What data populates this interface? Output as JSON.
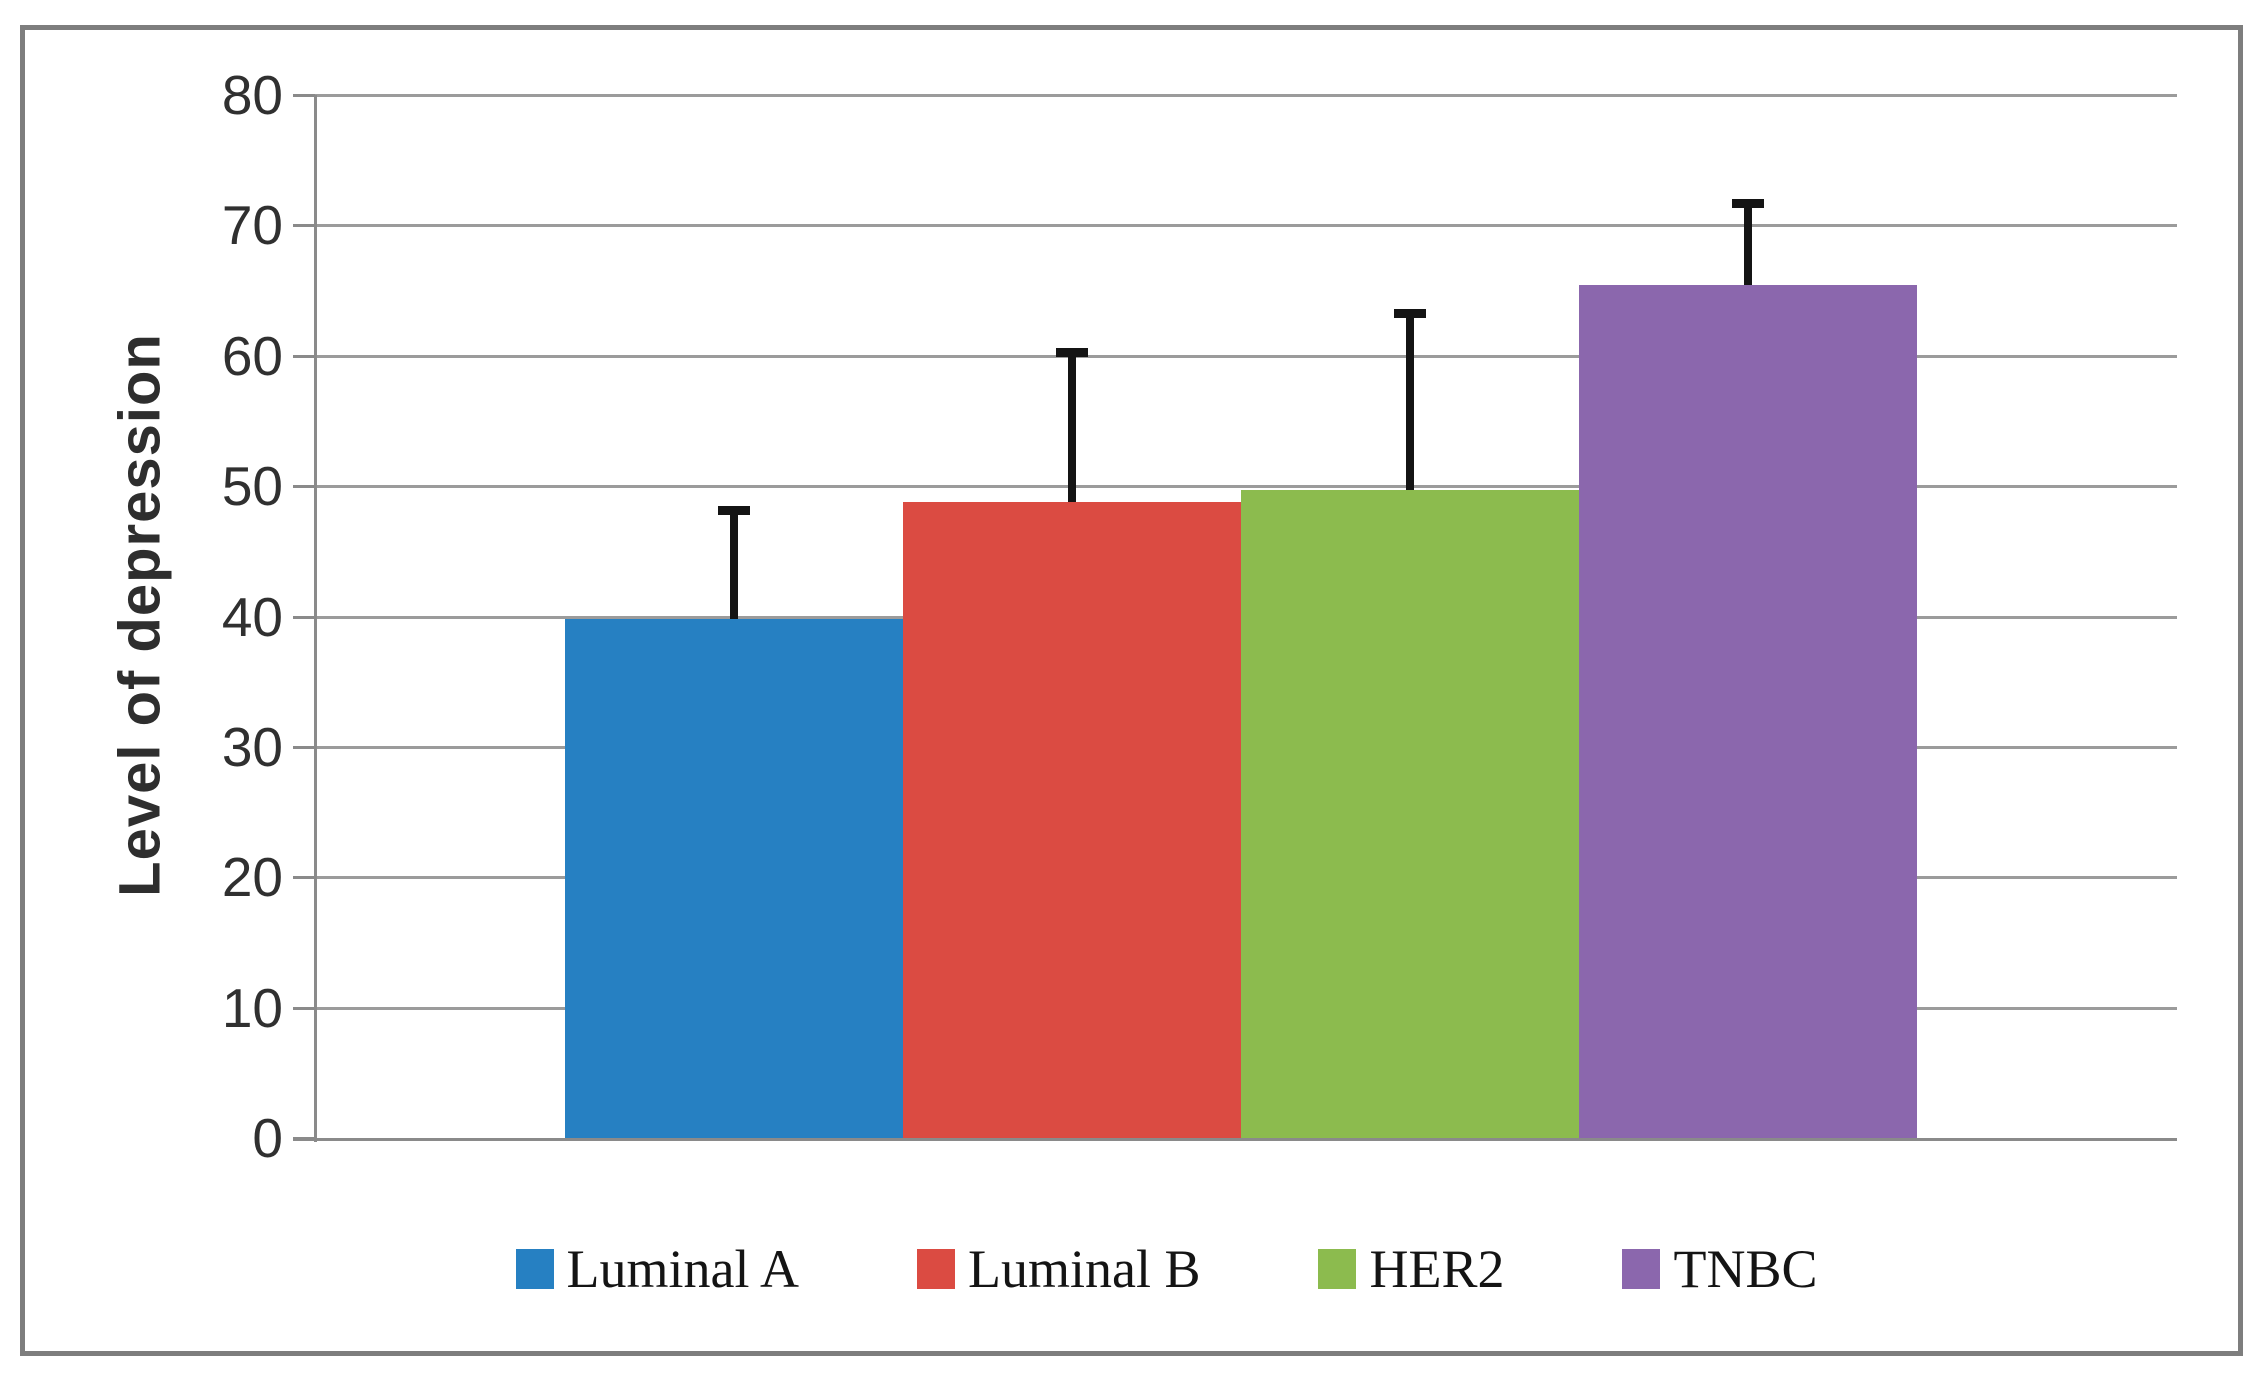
{
  "chart_data": {
    "type": "bar",
    "title": "",
    "xlabel": "",
    "ylabel": "Level of depression",
    "ylim": [
      0,
      80
    ],
    "yticks": [
      0,
      10,
      20,
      30,
      40,
      50,
      60,
      70,
      80
    ],
    "grid": true,
    "legend_position": "bottom",
    "error_bars": "plus-direction only",
    "series": [
      {
        "name": "Luminal A",
        "value": 39.8,
        "error_plus": 8.7,
        "color": "#2680C2"
      },
      {
        "name": "Luminal B",
        "value": 48.8,
        "error_plus": 11.8,
        "color": "#DB4B42"
      },
      {
        "name": "HER2",
        "value": 49.7,
        "error_plus": 13.9,
        "color": "#8CBB4E"
      },
      {
        "name": "TNBC",
        "value": 65.4,
        "error_plus": 6.6,
        "color": "#8B67AD"
      }
    ],
    "colors": {
      "gridline": "#9B9B9B",
      "axis": "#8A8A8A",
      "frame_border": "#7E7E7E",
      "error_bar": "#141414",
      "text": "#2E2E2E"
    }
  }
}
